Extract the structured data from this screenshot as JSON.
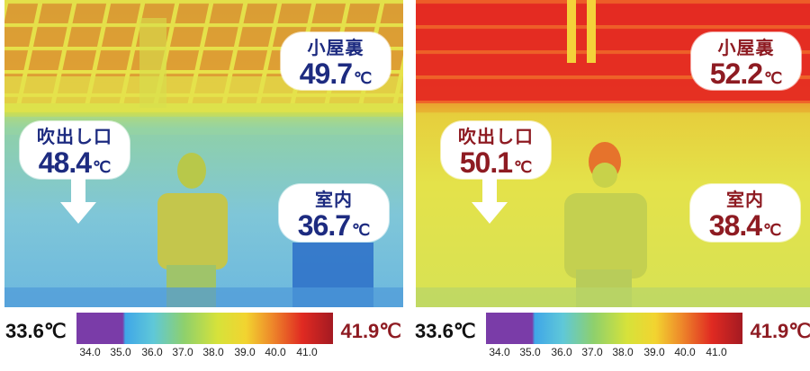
{
  "panels": [
    {
      "attic": {
        "label": "小屋裏",
        "value": "49.7",
        "unit": "℃"
      },
      "vent": {
        "label": "吹出し口",
        "value": "48.4",
        "unit": "℃"
      },
      "room": {
        "label": "室内",
        "value": "36.7",
        "unit": "℃"
      },
      "text_color": "#1d2b80"
    },
    {
      "attic": {
        "label": "小屋裏",
        "value": "52.2",
        "unit": "℃"
      },
      "vent": {
        "label": "吹出し口",
        "value": "50.1",
        "unit": "℃"
      },
      "room": {
        "label": "室内",
        "value": "38.4",
        "unit": "℃"
      },
      "text_color": "#8e1b22"
    }
  ],
  "scale": {
    "min_label": "33.6℃",
    "max_label": "41.9℃",
    "ticks": [
      "34.0",
      "35.0",
      "36.0",
      "37.0",
      "38.0",
      "39.0",
      "40.0",
      "41.0"
    ]
  }
}
